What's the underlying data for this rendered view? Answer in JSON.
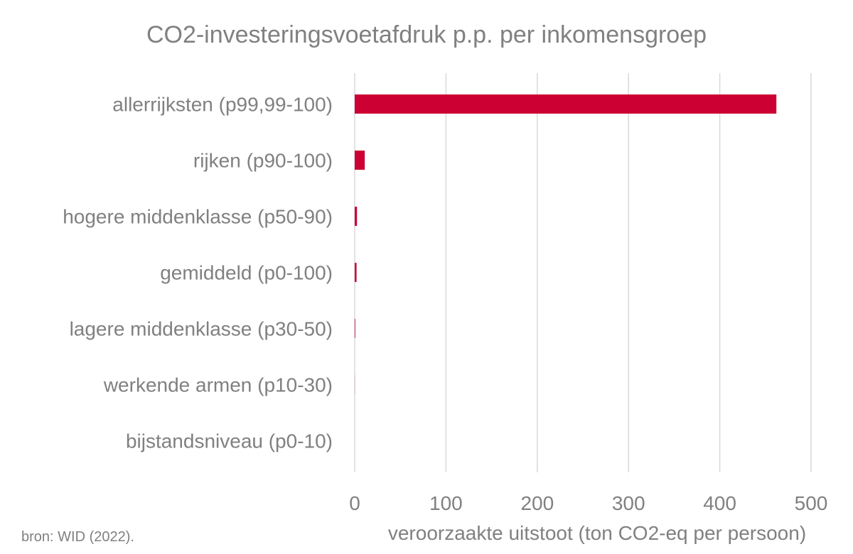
{
  "chart_data": {
    "type": "bar",
    "orientation": "horizontal",
    "title": "CO2-investeringsvoetafdruk p.p. per inkomensgroep",
    "xlabel": "veroorzaakte uitstoot (ton CO2-eq per persoon)",
    "ylabel": "",
    "categories": [
      "allerrijksten (p99,99-100)",
      "rijken (p90-100)",
      "hogere middenklasse (p50-90)",
      "gemiddeld (p0-100)",
      "lagere middenklasse (p30-50)",
      "werkende armen (p10-30)",
      "bijstandsniveau (p0-10)"
    ],
    "values": [
      462,
      11,
      2.5,
      2,
      0.6,
      0.1,
      0.0
    ],
    "xlim": [
      0,
      500
    ],
    "xticks": [
      0,
      100,
      200,
      300,
      400,
      500
    ],
    "xtick_labels": [
      "0",
      "100",
      "200",
      "300",
      "400",
      "500"
    ],
    "grid": true,
    "bar_color": "#cc0033",
    "text_color": "#808080",
    "grid_color": "#d9d9d9"
  },
  "source_note": "bron: WID (2022)."
}
